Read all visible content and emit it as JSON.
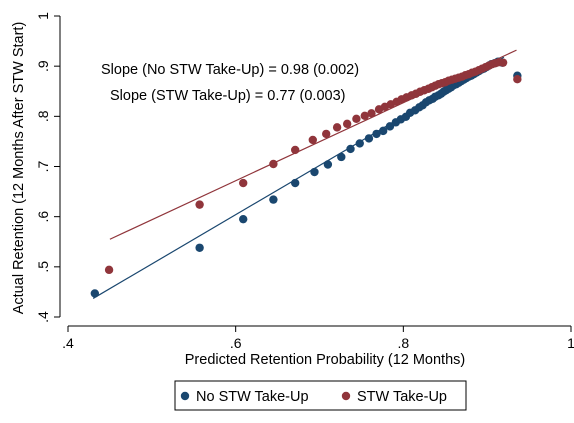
{
  "chart_data": {
    "type": "scatter",
    "title": "",
    "xlabel": "Predicted Retention Probability (12 Months)",
    "ylabel": "Actual Retention (12 Months After STW Start)",
    "xlim": [
      0.4,
      1.0
    ],
    "ylim": [
      0.4,
      1.0
    ],
    "xticks": [
      {
        "value": 0.4,
        "label": ".4"
      },
      {
        "value": 0.6,
        "label": ".6"
      },
      {
        "value": 0.8,
        "label": ".8"
      },
      {
        "value": 1.0,
        "label": "1"
      }
    ],
    "yticks": [
      {
        "value": 0.4,
        "label": ".4"
      },
      {
        "value": 0.5,
        "label": ".5"
      },
      {
        "value": 0.6,
        "label": ".6"
      },
      {
        "value": 0.7,
        "label": ".7"
      },
      {
        "value": 0.8,
        "label": ".8"
      },
      {
        "value": 0.9,
        "label": ".9"
      },
      {
        "value": 1.0,
        "label": "1"
      }
    ],
    "grid": false,
    "legend_position": "bottom",
    "annotations": [
      "Slope (No STW Take-Up) = 0.98 (0.002)",
      "Slope (STW Take-Up) = 0.77 (0.003)"
    ],
    "series": [
      {
        "name": "No STW Take-Up",
        "color": "#1a476f",
        "fit_line": {
          "x": [
            0.43,
            0.92
          ],
          "y": [
            0.437,
            0.918
          ]
        },
        "points": [
          [
            0.432,
            0.447
          ],
          [
            0.557,
            0.538
          ],
          [
            0.609,
            0.595
          ],
          [
            0.645,
            0.634
          ],
          [
            0.671,
            0.667
          ],
          [
            0.694,
            0.689
          ],
          [
            0.71,
            0.704
          ],
          [
            0.726,
            0.719
          ],
          [
            0.737,
            0.735
          ],
          [
            0.748,
            0.746
          ],
          [
            0.759,
            0.756
          ],
          [
            0.768,
            0.765
          ],
          [
            0.776,
            0.771
          ],
          [
            0.784,
            0.78
          ],
          [
            0.791,
            0.788
          ],
          [
            0.797,
            0.794
          ],
          [
            0.803,
            0.799
          ],
          [
            0.808,
            0.807
          ],
          [
            0.814,
            0.812
          ],
          [
            0.819,
            0.818
          ],
          [
            0.823,
            0.822
          ],
          [
            0.827,
            0.828
          ],
          [
            0.831,
            0.832
          ],
          [
            0.835,
            0.835
          ],
          [
            0.838,
            0.839
          ],
          [
            0.842,
            0.842
          ],
          [
            0.845,
            0.845
          ],
          [
            0.848,
            0.849
          ],
          [
            0.851,
            0.852
          ],
          [
            0.854,
            0.855
          ],
          [
            0.857,
            0.858
          ],
          [
            0.86,
            0.862
          ],
          [
            0.863,
            0.864
          ],
          [
            0.866,
            0.867
          ],
          [
            0.869,
            0.87
          ],
          [
            0.872,
            0.873
          ],
          [
            0.875,
            0.876
          ],
          [
            0.878,
            0.879
          ],
          [
            0.881,
            0.881
          ],
          [
            0.884,
            0.884
          ],
          [
            0.887,
            0.887
          ],
          [
            0.89,
            0.89
          ],
          [
            0.893,
            0.893
          ],
          [
            0.896,
            0.895
          ],
          [
            0.899,
            0.898
          ],
          [
            0.902,
            0.901
          ],
          [
            0.905,
            0.904
          ],
          [
            0.909,
            0.906
          ],
          [
            0.913,
            0.909
          ],
          [
            0.918,
            0.907
          ],
          [
            0.936,
            0.881
          ]
        ]
      },
      {
        "name": "STW Take-Up",
        "color": "#90353b",
        "fit_line": {
          "x": [
            0.45,
            0.935
          ],
          "y": [
            0.555,
            0.932
          ]
        },
        "points": [
          [
            0.449,
            0.494
          ],
          [
            0.557,
            0.624
          ],
          [
            0.609,
            0.667
          ],
          [
            0.645,
            0.705
          ],
          [
            0.671,
            0.733
          ],
          [
            0.692,
            0.753
          ],
          [
            0.708,
            0.765
          ],
          [
            0.721,
            0.778
          ],
          [
            0.733,
            0.785
          ],
          [
            0.744,
            0.795
          ],
          [
            0.754,
            0.801
          ],
          [
            0.762,
            0.806
          ],
          [
            0.771,
            0.814
          ],
          [
            0.778,
            0.819
          ],
          [
            0.785,
            0.824
          ],
          [
            0.792,
            0.829
          ],
          [
            0.798,
            0.834
          ],
          [
            0.804,
            0.838
          ],
          [
            0.81,
            0.842
          ],
          [
            0.815,
            0.845
          ],
          [
            0.82,
            0.849
          ],
          [
            0.825,
            0.852
          ],
          [
            0.83,
            0.855
          ],
          [
            0.834,
            0.858
          ],
          [
            0.838,
            0.861
          ],
          [
            0.842,
            0.864
          ],
          [
            0.846,
            0.866
          ],
          [
            0.85,
            0.868
          ],
          [
            0.854,
            0.871
          ],
          [
            0.858,
            0.873
          ],
          [
            0.862,
            0.875
          ],
          [
            0.866,
            0.877
          ],
          [
            0.87,
            0.879
          ],
          [
            0.874,
            0.882
          ],
          [
            0.878,
            0.884
          ],
          [
            0.882,
            0.887
          ],
          [
            0.886,
            0.889
          ],
          [
            0.89,
            0.892
          ],
          [
            0.894,
            0.895
          ],
          [
            0.898,
            0.898
          ],
          [
            0.902,
            0.901
          ],
          [
            0.906,
            0.904
          ],
          [
            0.91,
            0.906
          ],
          [
            0.914,
            0.908
          ],
          [
            0.919,
            0.907
          ],
          [
            0.936,
            0.874
          ]
        ]
      }
    ]
  }
}
